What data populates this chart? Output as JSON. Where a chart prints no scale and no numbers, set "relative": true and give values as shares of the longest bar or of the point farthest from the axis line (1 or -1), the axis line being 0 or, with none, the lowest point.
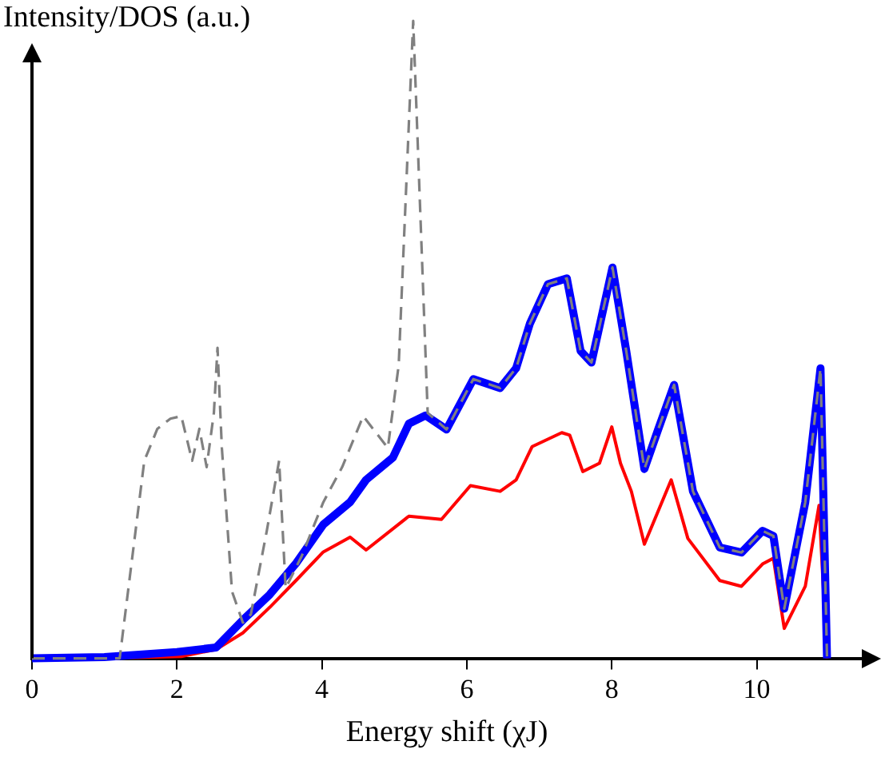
{
  "chart_data": {
    "type": "line",
    "relative": true,
    "xlabel": "Energy shift (χJ)",
    "ylabel": "Intensity/DOS (a.u.)",
    "xlim": [
      0,
      11.45
    ],
    "xticks": [
      0,
      2,
      4,
      6,
      8,
      10
    ],
    "grid": false,
    "legend": false,
    "tick_labels": "x",
    "series": [
      {
        "color": "#ff0000",
        "line_style": "solid",
        "x": [
          0,
          1,
          2.06,
          2.54,
          2.91,
          3.28,
          3.65,
          4.02,
          4.39,
          4.61,
          5.2,
          5.65,
          6.05,
          6.46,
          6.68,
          6.9,
          7.31,
          7.42,
          7.6,
          7.83,
          8.0,
          8.12,
          8.27,
          8.45,
          8.82,
          9.05,
          9.49,
          9.79,
          10.08,
          10.23,
          10.38,
          10.67,
          10.86,
          10.97
        ],
        "values": [
          0,
          0,
          0.003,
          0.014,
          0.04,
          0.08,
          0.123,
          0.167,
          0.19,
          0.17,
          0.223,
          0.218,
          0.271,
          0.262,
          0.28,
          0.332,
          0.354,
          0.35,
          0.293,
          0.306,
          0.363,
          0.306,
          0.262,
          0.179,
          0.28,
          0.188,
          0.122,
          0.113,
          0.148,
          0.157,
          0.047,
          0.113,
          0.24,
          0
        ]
      },
      {
        "color": "#0000ff",
        "line_style": "solid",
        "x": [
          0,
          1,
          2.0,
          2.54,
          2.91,
          3.28,
          3.65,
          4.02,
          4.39,
          4.61,
          4.98,
          5.2,
          5.43,
          5.72,
          6.09,
          6.46,
          6.68,
          6.87,
          7.12,
          7.38,
          7.57,
          7.72,
          8.01,
          8.2,
          8.45,
          8.64,
          8.86,
          9.12,
          9.49,
          9.79,
          10.08,
          10.23,
          10.38,
          10.67,
          10.88,
          10.97
        ],
        "values": [
          0,
          0.002,
          0.01,
          0.017,
          0.06,
          0.1,
          0.15,
          0.21,
          0.245,
          0.28,
          0.315,
          0.368,
          0.381,
          0.359,
          0.438,
          0.424,
          0.455,
          0.525,
          0.587,
          0.596,
          0.482,
          0.464,
          0.613,
          0.482,
          0.297,
          0.359,
          0.429,
          0.262,
          0.174,
          0.166,
          0.2,
          0.192,
          0.078,
          0.245,
          0.455,
          0
        ]
      },
      {
        "color": "#808080",
        "line_style": "dashed",
        "x": [
          0,
          1.21,
          1.55,
          1.73,
          1.91,
          2.06,
          2.21,
          2.31,
          2.41,
          2.51,
          2.56,
          2.62,
          2.76,
          2.91,
          3.02,
          3.24,
          3.41,
          3.5,
          3.72,
          4.02,
          4.28,
          4.57,
          4.91,
          5.06,
          5.26,
          5.46,
          5.72,
          6.09,
          6.46,
          6.68,
          6.87,
          7.12,
          7.38,
          7.57,
          7.72,
          8.01,
          8.2,
          8.45,
          8.64,
          8.86,
          9.12,
          9.49,
          9.79,
          10.08,
          10.23,
          10.38,
          10.67,
          10.88,
          10.97
        ],
        "values": [
          0,
          0,
          0.31,
          0.36,
          0.376,
          0.38,
          0.31,
          0.36,
          0.3,
          0.385,
          0.487,
          0.33,
          0.105,
          0.056,
          0.069,
          0.2,
          0.31,
          0.11,
          0.16,
          0.245,
          0.3,
          0.38,
          0.33,
          0.46,
          1,
          0.385,
          0.359,
          0.438,
          0.424,
          0.455,
          0.525,
          0.587,
          0.596,
          0.482,
          0.464,
          0.613,
          0.482,
          0.297,
          0.359,
          0.429,
          0.262,
          0.174,
          0.166,
          0.2,
          0.192,
          0.078,
          0.245,
          0.455,
          0
        ]
      }
    ]
  }
}
